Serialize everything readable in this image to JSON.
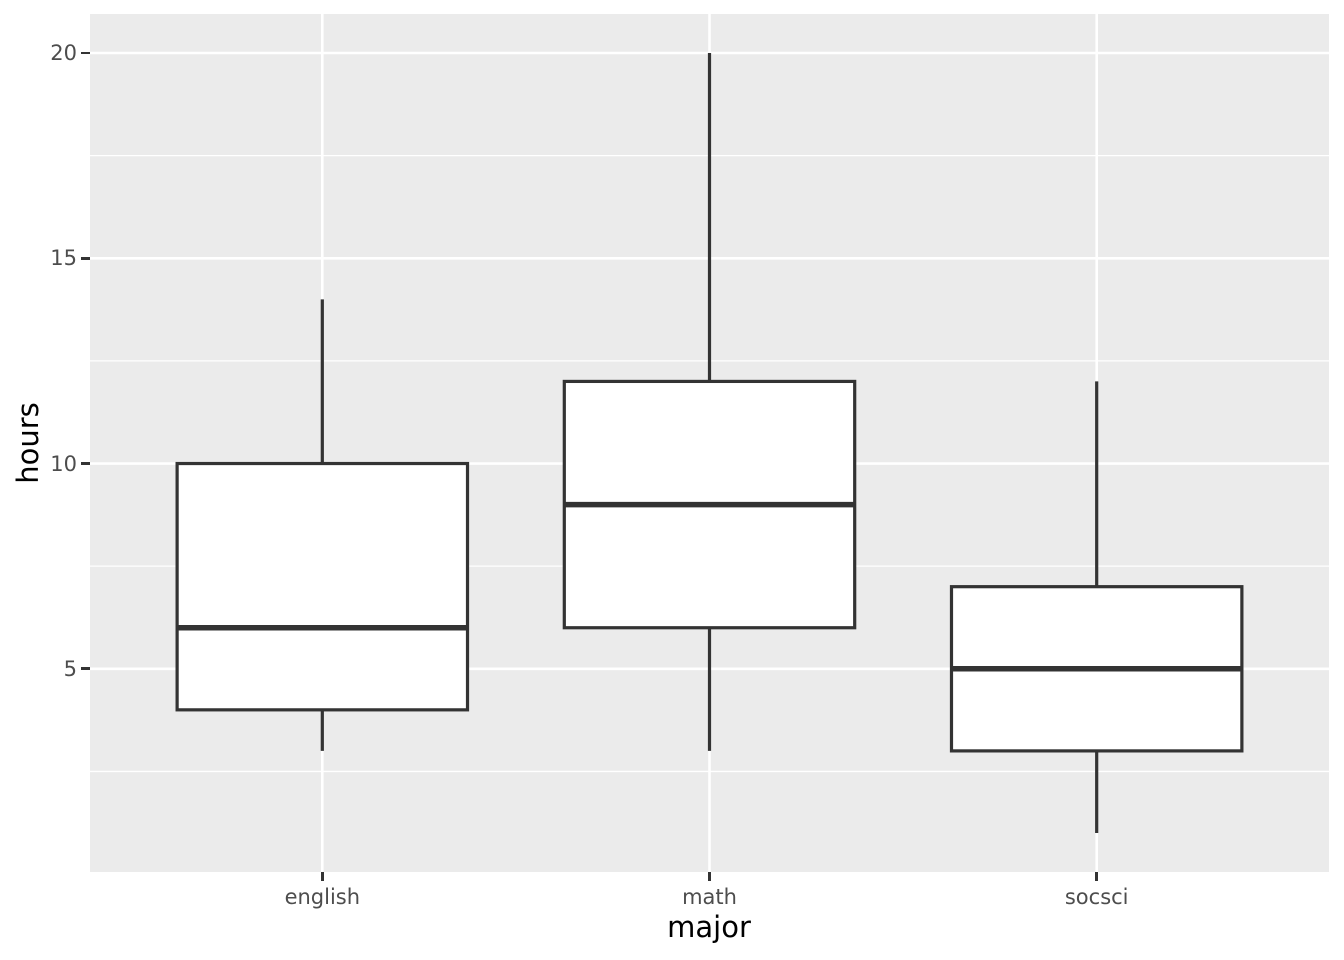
{
  "chart_data": {
    "type": "boxplot",
    "title": "",
    "xlabel": "major",
    "ylabel": "hours",
    "categories": [
      "english",
      "math",
      "socsci"
    ],
    "series": [
      {
        "name": "english",
        "whisker_low": 3,
        "q1": 4,
        "median": 6,
        "q3": 10,
        "whisker_high": 14,
        "outliers": []
      },
      {
        "name": "math",
        "whisker_low": 3,
        "q1": 6,
        "median": 9,
        "q3": 12,
        "whisker_high": 20,
        "outliers": []
      },
      {
        "name": "socsci",
        "whisker_low": 1,
        "q1": 3,
        "median": 5,
        "q3": 7,
        "whisker_high": 12,
        "outliers": []
      }
    ],
    "y_major_ticks": [
      20,
      15,
      10,
      5
    ],
    "y_minor_gridlines": [
      17.5,
      12.5,
      7.5,
      2.5
    ],
    "ylim": [
      0.05,
      20.95
    ],
    "box_width_units": 0.75,
    "grid": true,
    "legend": false,
    "style": {
      "figure_background": "#FFFFFF",
      "panel_background": "#EBEBEB",
      "gridline_color": "#FFFFFF",
      "box_fill": "#FFFFFF",
      "line_color": "#333333",
      "tick_mark_color": "#333333",
      "tick_label_color": "#4D4D4D",
      "axis_title_color": "#000000"
    }
  }
}
